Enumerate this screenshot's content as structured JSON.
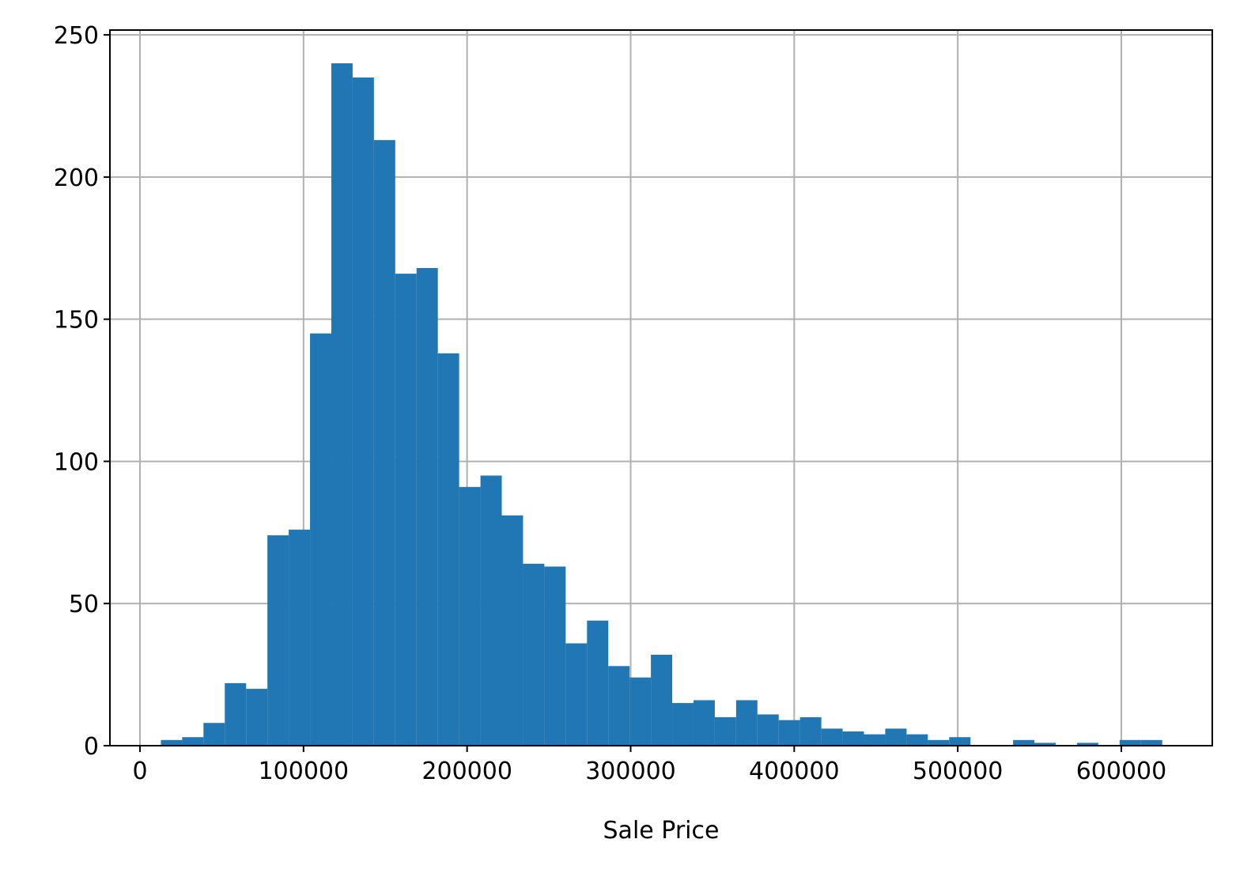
{
  "chart_data": {
    "type": "histogram",
    "x_label": "Sale Price",
    "bins": [
      12789,
      25815,
      38841,
      51866,
      64892,
      77918,
      90944,
      103969,
      116995,
      130021,
      143047,
      156072,
      169098,
      182124,
      195150,
      208176,
      221201,
      234227,
      247253,
      260279,
      273304,
      286330,
      299356,
      312382,
      325407,
      338433,
      351459,
      364485,
      377511,
      390536,
      403562,
      416588,
      429614,
      442639,
      455665,
      468691,
      481717,
      494742,
      507768,
      520794,
      533820,
      546846,
      559871,
      572897,
      585923,
      598949,
      611974,
      625000
    ],
    "values": [
      2,
      3,
      8,
      22,
      20,
      74,
      76,
      145,
      240,
      235,
      213,
      166,
      168,
      138,
      91,
      95,
      81,
      64,
      63,
      36,
      44,
      28,
      24,
      32,
      15,
      16,
      10,
      16,
      11,
      9,
      10,
      6,
      5,
      4,
      6,
      4,
      2,
      3,
      0,
      0,
      2,
      1,
      0,
      1,
      0,
      2,
      2
    ],
    "color": "#2077b4",
    "xlim": [
      -18372,
      655610
    ],
    "ylim": [
      0,
      251.7
    ],
    "xticks": [
      0,
      100000,
      200000,
      300000,
      400000,
      500000,
      600000
    ],
    "yticks": [
      0,
      50,
      100,
      150,
      200,
      250
    ],
    "grid": true
  }
}
